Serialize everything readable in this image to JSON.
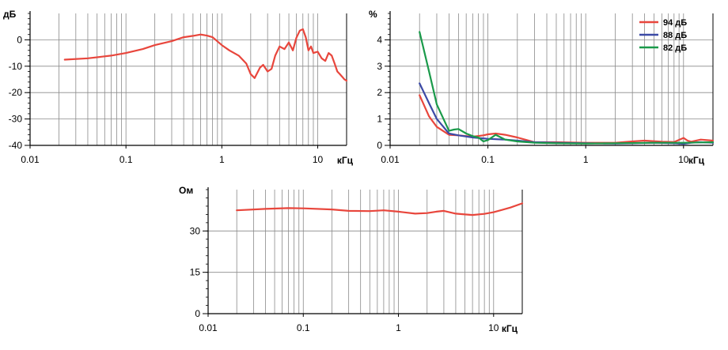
{
  "chart_data": [
    {
      "type": "line",
      "yunit": "дБ",
      "xunit": "кГц",
      "xscale": "log",
      "xlim": [
        0.01,
        20
      ],
      "ylim": [
        -40,
        10
      ],
      "x_ticks": [
        0.01,
        0.1,
        1,
        10
      ],
      "x_tick_labels": [
        "0.01",
        "0.1",
        "1",
        "10"
      ],
      "y_ticks": [
        0,
        -10,
        -20,
        -30,
        -40
      ],
      "y_tick_labels": [
        "0",
        "-10",
        "-20",
        "-30",
        "-40"
      ],
      "grid": true,
      "series": [
        {
          "color": "#e8463c",
          "x": [
            0.023,
            0.04,
            0.07,
            0.1,
            0.15,
            0.2,
            0.3,
            0.4,
            0.5,
            0.6,
            0.7,
            0.8,
            1.0,
            1.2,
            1.5,
            1.8,
            2.0,
            2.2,
            2.5,
            2.7,
            3.0,
            3.3,
            3.6,
            4.0,
            4.5,
            5.0,
            5.5,
            6.0,
            6.5,
            7.0,
            7.5,
            8.0,
            8.5,
            9.0,
            10.0,
            11.0,
            12.0,
            13.0,
            14.0,
            15.0,
            16.0,
            17.0,
            18.0,
            19.0,
            20.0
          ],
          "y": [
            -7.5,
            -7,
            -6,
            -5,
            -3.5,
            -2,
            -0.5,
            1,
            1.5,
            2,
            1.6,
            1,
            -2,
            -4,
            -6,
            -9,
            -13,
            -14.5,
            -10.5,
            -9.5,
            -12,
            -11,
            -6,
            -2.5,
            -3.5,
            -1,
            -4,
            0.8,
            3.5,
            4,
            1,
            -4,
            -2.5,
            -5,
            -4.5,
            -7,
            -8,
            -5,
            -6,
            -9,
            -12,
            -13,
            -14,
            -15,
            -15.5
          ]
        }
      ]
    },
    {
      "type": "line",
      "yunit": "%",
      "xunit": "кГц",
      "xscale": "log",
      "xlim": [
        0.01,
        20
      ],
      "ylim": [
        0,
        5
      ],
      "x_ticks": [
        0.01,
        0.1,
        1,
        10
      ],
      "x_tick_labels": [
        "0.01",
        "0.1",
        "1",
        "10"
      ],
      "y_ticks": [
        0,
        1,
        2,
        3,
        4
      ],
      "y_tick_labels": [
        "0",
        "1",
        "2",
        "3",
        "4"
      ],
      "grid": true,
      "legend": "top-right",
      "series": [
        {
          "name": "94 дБ",
          "color": "#e8463c",
          "x": [
            0.02,
            0.025,
            0.03,
            0.04,
            0.05,
            0.07,
            0.09,
            0.1,
            0.12,
            0.15,
            0.2,
            0.25,
            0.3,
            0.5,
            1,
            2,
            3,
            4,
            5,
            6,
            8,
            10,
            11,
            12,
            15,
            20
          ],
          "y": [
            1.9,
            1.1,
            0.7,
            0.4,
            0.38,
            0.33,
            0.38,
            0.42,
            0.45,
            0.4,
            0.3,
            0.2,
            0.12,
            0.12,
            0.1,
            0.1,
            0.15,
            0.18,
            0.16,
            0.14,
            0.13,
            0.28,
            0.18,
            0.14,
            0.22,
            0.18
          ]
        },
        {
          "name": "88 дБ",
          "color": "#3c4aa6",
          "x": [
            0.02,
            0.025,
            0.03,
            0.04,
            0.05,
            0.07,
            0.1,
            0.15,
            0.2,
            0.3,
            0.5,
            1,
            2,
            3,
            5,
            8,
            10,
            12,
            15,
            20
          ],
          "y": [
            2.35,
            1.6,
            1.0,
            0.45,
            0.38,
            0.3,
            0.25,
            0.22,
            0.18,
            0.12,
            0.1,
            0.08,
            0.07,
            0.08,
            0.1,
            0.08,
            0.06,
            0.1,
            0.12,
            0.1
          ]
        },
        {
          "name": "82 дБ",
          "color": "#1a9a4a",
          "x": [
            0.02,
            0.025,
            0.03,
            0.04,
            0.045,
            0.05,
            0.06,
            0.07,
            0.08,
            0.09,
            0.1,
            0.12,
            0.15,
            0.2,
            0.3,
            0.5,
            1,
            2,
            5,
            10,
            20
          ],
          "y": [
            4.3,
            2.8,
            1.55,
            0.55,
            0.6,
            0.62,
            0.45,
            0.35,
            0.3,
            0.15,
            0.2,
            0.4,
            0.22,
            0.15,
            0.1,
            0.08,
            0.07,
            0.08,
            0.1,
            0.1,
            0.12
          ]
        }
      ]
    },
    {
      "type": "line",
      "yunit": "Ом",
      "xunit": "кГц",
      "xscale": "log",
      "xlim": [
        0.01,
        20
      ],
      "ylim": [
        0,
        45
      ],
      "x_ticks": [
        0.01,
        0.1,
        1,
        10
      ],
      "x_tick_labels": [
        "0.01",
        "0.1",
        "1",
        "10"
      ],
      "y_ticks": [
        0,
        15,
        30
      ],
      "y_tick_labels": [
        "0",
        "15",
        "30"
      ],
      "grid": true,
      "series": [
        {
          "color": "#e8463c",
          "x": [
            0.02,
            0.04,
            0.07,
            0.1,
            0.2,
            0.3,
            0.5,
            0.7,
            1.0,
            1.5,
            2.0,
            2.5,
            3.0,
            4.0,
            5.0,
            6.0,
            8.0,
            10.0,
            15.0,
            20.0
          ],
          "y": [
            37.5,
            38,
            38.3,
            38.2,
            37.8,
            37.3,
            37.2,
            37.5,
            37.0,
            36.3,
            36.5,
            37.0,
            37.3,
            36.3,
            36.0,
            35.8,
            36.2,
            36.8,
            38.5,
            40.0
          ]
        }
      ]
    }
  ]
}
